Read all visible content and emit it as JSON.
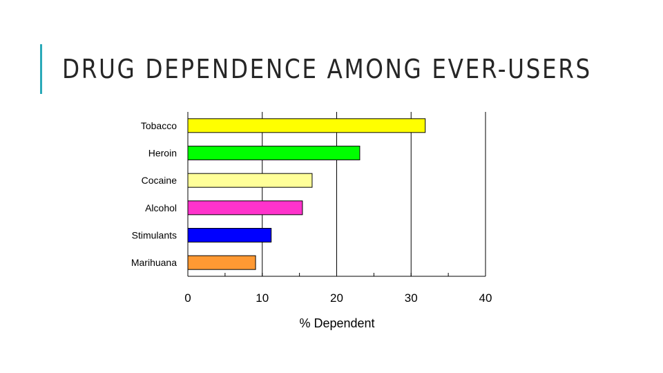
{
  "slide": {
    "title": "DRUG DEPENDENCE AMONG EVER-USERS",
    "accent_color": "#2aa9b8"
  },
  "chart_data": {
    "type": "bar",
    "orientation": "horizontal",
    "categories": [
      "Tobacco",
      "Heroin",
      "Cocaine",
      "Alcohol",
      "Stimulants",
      "Marihuana"
    ],
    "values": [
      31.9,
      23.1,
      16.7,
      15.4,
      11.2,
      9.1
    ],
    "colors": [
      "#ffff00",
      "#00ff00",
      "#ffff99",
      "#ff33cc",
      "#0000ff",
      "#ff9933"
    ],
    "xlabel": "% Dependent",
    "xlim": [
      0,
      40
    ],
    "xticks": [
      "0",
      "10",
      "20",
      "30",
      "40"
    ],
    "grid": true
  }
}
